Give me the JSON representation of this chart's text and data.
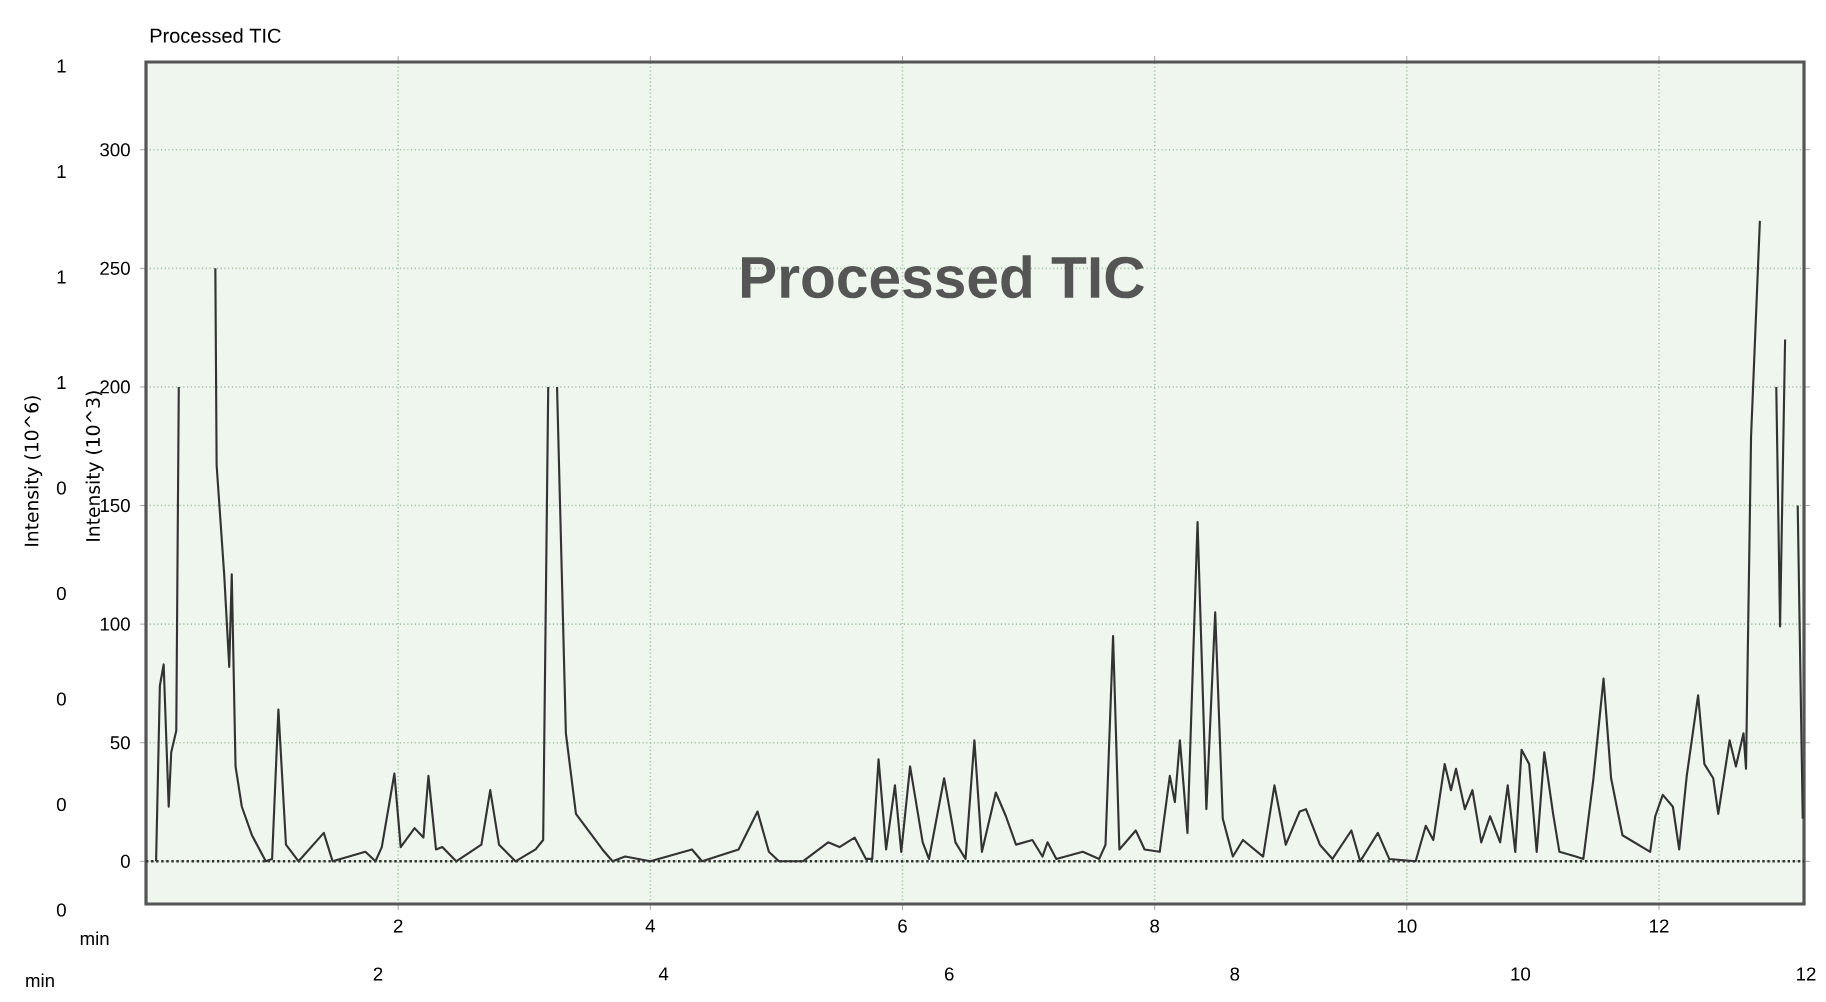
{
  "chart_data": {
    "type": "line",
    "title": "Processed TIC",
    "annotations": [
      "Processed TIC"
    ],
    "xlabel": "min",
    "ylabel": "Intensity (10^3)",
    "x2label": "min",
    "y2label": "Intensity (10^6)",
    "xlim": [
      0,
      13.15
    ],
    "ylim": [
      -18,
      337
    ],
    "xticks": [
      2,
      4,
      6,
      8,
      10,
      12
    ],
    "yticks": [
      0,
      50,
      100,
      150,
      200,
      250,
      300
    ],
    "x2lim": [
      2,
      12
    ],
    "x2ticks": [
      2,
      4,
      6,
      8,
      10,
      12
    ],
    "y2lim": [
      0,
      0.96
    ],
    "y2ticks": [
      {
        "value": 0,
        "label": "0"
      },
      {
        "value": 0.12,
        "label": "0"
      },
      {
        "value": 0.24,
        "label": "0"
      },
      {
        "value": 0.36,
        "label": "0"
      },
      {
        "value": 0.48,
        "label": "0"
      },
      {
        "value": 0.6,
        "label": "1"
      },
      {
        "value": 0.72,
        "label": "1"
      },
      {
        "value": 0.84,
        "label": "1"
      },
      {
        "value": 0.96,
        "label": "1"
      }
    ],
    "grid": true,
    "line_style": "solid",
    "ref_lines": [
      {
        "axis": "y",
        "value": 0,
        "line_style": "dotted",
        "color": "#333333"
      }
    ],
    "series": [
      {
        "color": "#333333",
        "x": [
          0.08,
          0.11,
          0.14,
          0.18,
          0.2,
          0.24,
          0.26,
          0.27,
          0.54,
          0.55,
          0.56,
          0.62,
          0.66,
          0.68,
          0.71,
          0.76,
          0.84,
          0.95,
          1.0,
          1.05,
          1.11,
          1.21,
          1.41,
          1.48,
          1.74,
          1.82,
          1.87,
          1.97,
          2.02,
          2.13,
          2.2,
          2.24,
          2.3,
          2.35,
          2.46,
          2.66,
          2.73,
          2.8,
          2.93,
          3.09,
          3.15,
          3.19,
          3.2,
          3.24,
          3.26,
          3.33,
          3.41,
          3.62,
          3.7,
          3.8,
          4.0,
          4.33,
          4.41,
          4.7,
          4.85,
          4.94,
          5.02,
          5.21,
          5.31,
          5.41,
          5.5,
          5.62,
          5.71,
          5.76,
          5.81,
          5.87,
          5.94,
          5.99,
          6.06,
          6.16,
          6.21,
          6.33,
          6.42,
          6.5,
          6.57,
          6.63,
          6.74,
          6.82,
          6.9,
          7.03,
          7.11,
          7.15,
          7.22,
          7.43,
          7.56,
          7.61,
          7.67,
          7.72,
          7.85,
          7.92,
          8.04,
          8.12,
          8.16,
          8.2,
          8.26,
          8.34,
          8.41,
          8.48,
          8.54,
          8.62,
          8.7,
          8.86,
          8.95,
          9.04,
          9.15,
          9.2,
          9.31,
          9.41,
          9.56,
          9.63,
          9.77,
          9.86,
          10.07,
          10.15,
          10.21,
          10.3,
          10.35,
          10.39,
          10.46,
          10.52,
          10.59,
          10.66,
          10.74,
          10.8,
          10.86,
          10.91,
          10.97,
          11.03,
          11.09,
          11.16,
          11.21,
          11.34,
          11.4,
          11.48,
          11.56,
          11.62,
          11.71,
          11.93,
          11.97,
          12.03,
          12.11,
          12.16,
          12.22,
          12.31,
          12.36,
          12.43,
          12.47,
          12.56,
          12.61,
          12.67,
          12.69,
          12.73,
          12.8,
          12.88,
          12.92,
          12.93,
          12.96,
          13.0,
          13.04,
          13.06,
          13.1,
          13.14
        ],
        "values": [
          0,
          74,
          83,
          23,
          46,
          55,
          200,
          null,
          null,
          250,
          167,
          121,
          82,
          121,
          40,
          23,
          11,
          0,
          1,
          64,
          7,
          0,
          12,
          0,
          4,
          0,
          6,
          37,
          6,
          14,
          10,
          36,
          5,
          6,
          0,
          7,
          30,
          7,
          0,
          5,
          9,
          200,
          null,
          null,
          200,
          54,
          20,
          5,
          0,
          2,
          0,
          5,
          0,
          5,
          21,
          4,
          0,
          0,
          4,
          8,
          6,
          10,
          1,
          1,
          43,
          5,
          32,
          4,
          40,
          8,
          1,
          35,
          8,
          1,
          51,
          4,
          29,
          19,
          7,
          9,
          2,
          8,
          1,
          4,
          1,
          7,
          95,
          5,
          13,
          5,
          4,
          36,
          25,
          51,
          12,
          143,
          22,
          105,
          18,
          2,
          9,
          2,
          32,
          7,
          21,
          22,
          7,
          1,
          13,
          0,
          12,
          1,
          0,
          15,
          9,
          41,
          30,
          39,
          22,
          30,
          8,
          19,
          8,
          32,
          4,
          47,
          41,
          4,
          46,
          20,
          4,
          2,
          1,
          35,
          77,
          35,
          11,
          4,
          19,
          28,
          23,
          5,
          36,
          70,
          41,
          35,
          20,
          51,
          40,
          54,
          39,
          179,
          270,
          null,
          null,
          200,
          99,
          220,
          null,
          null,
          150,
          18
        ]
      }
    ]
  }
}
